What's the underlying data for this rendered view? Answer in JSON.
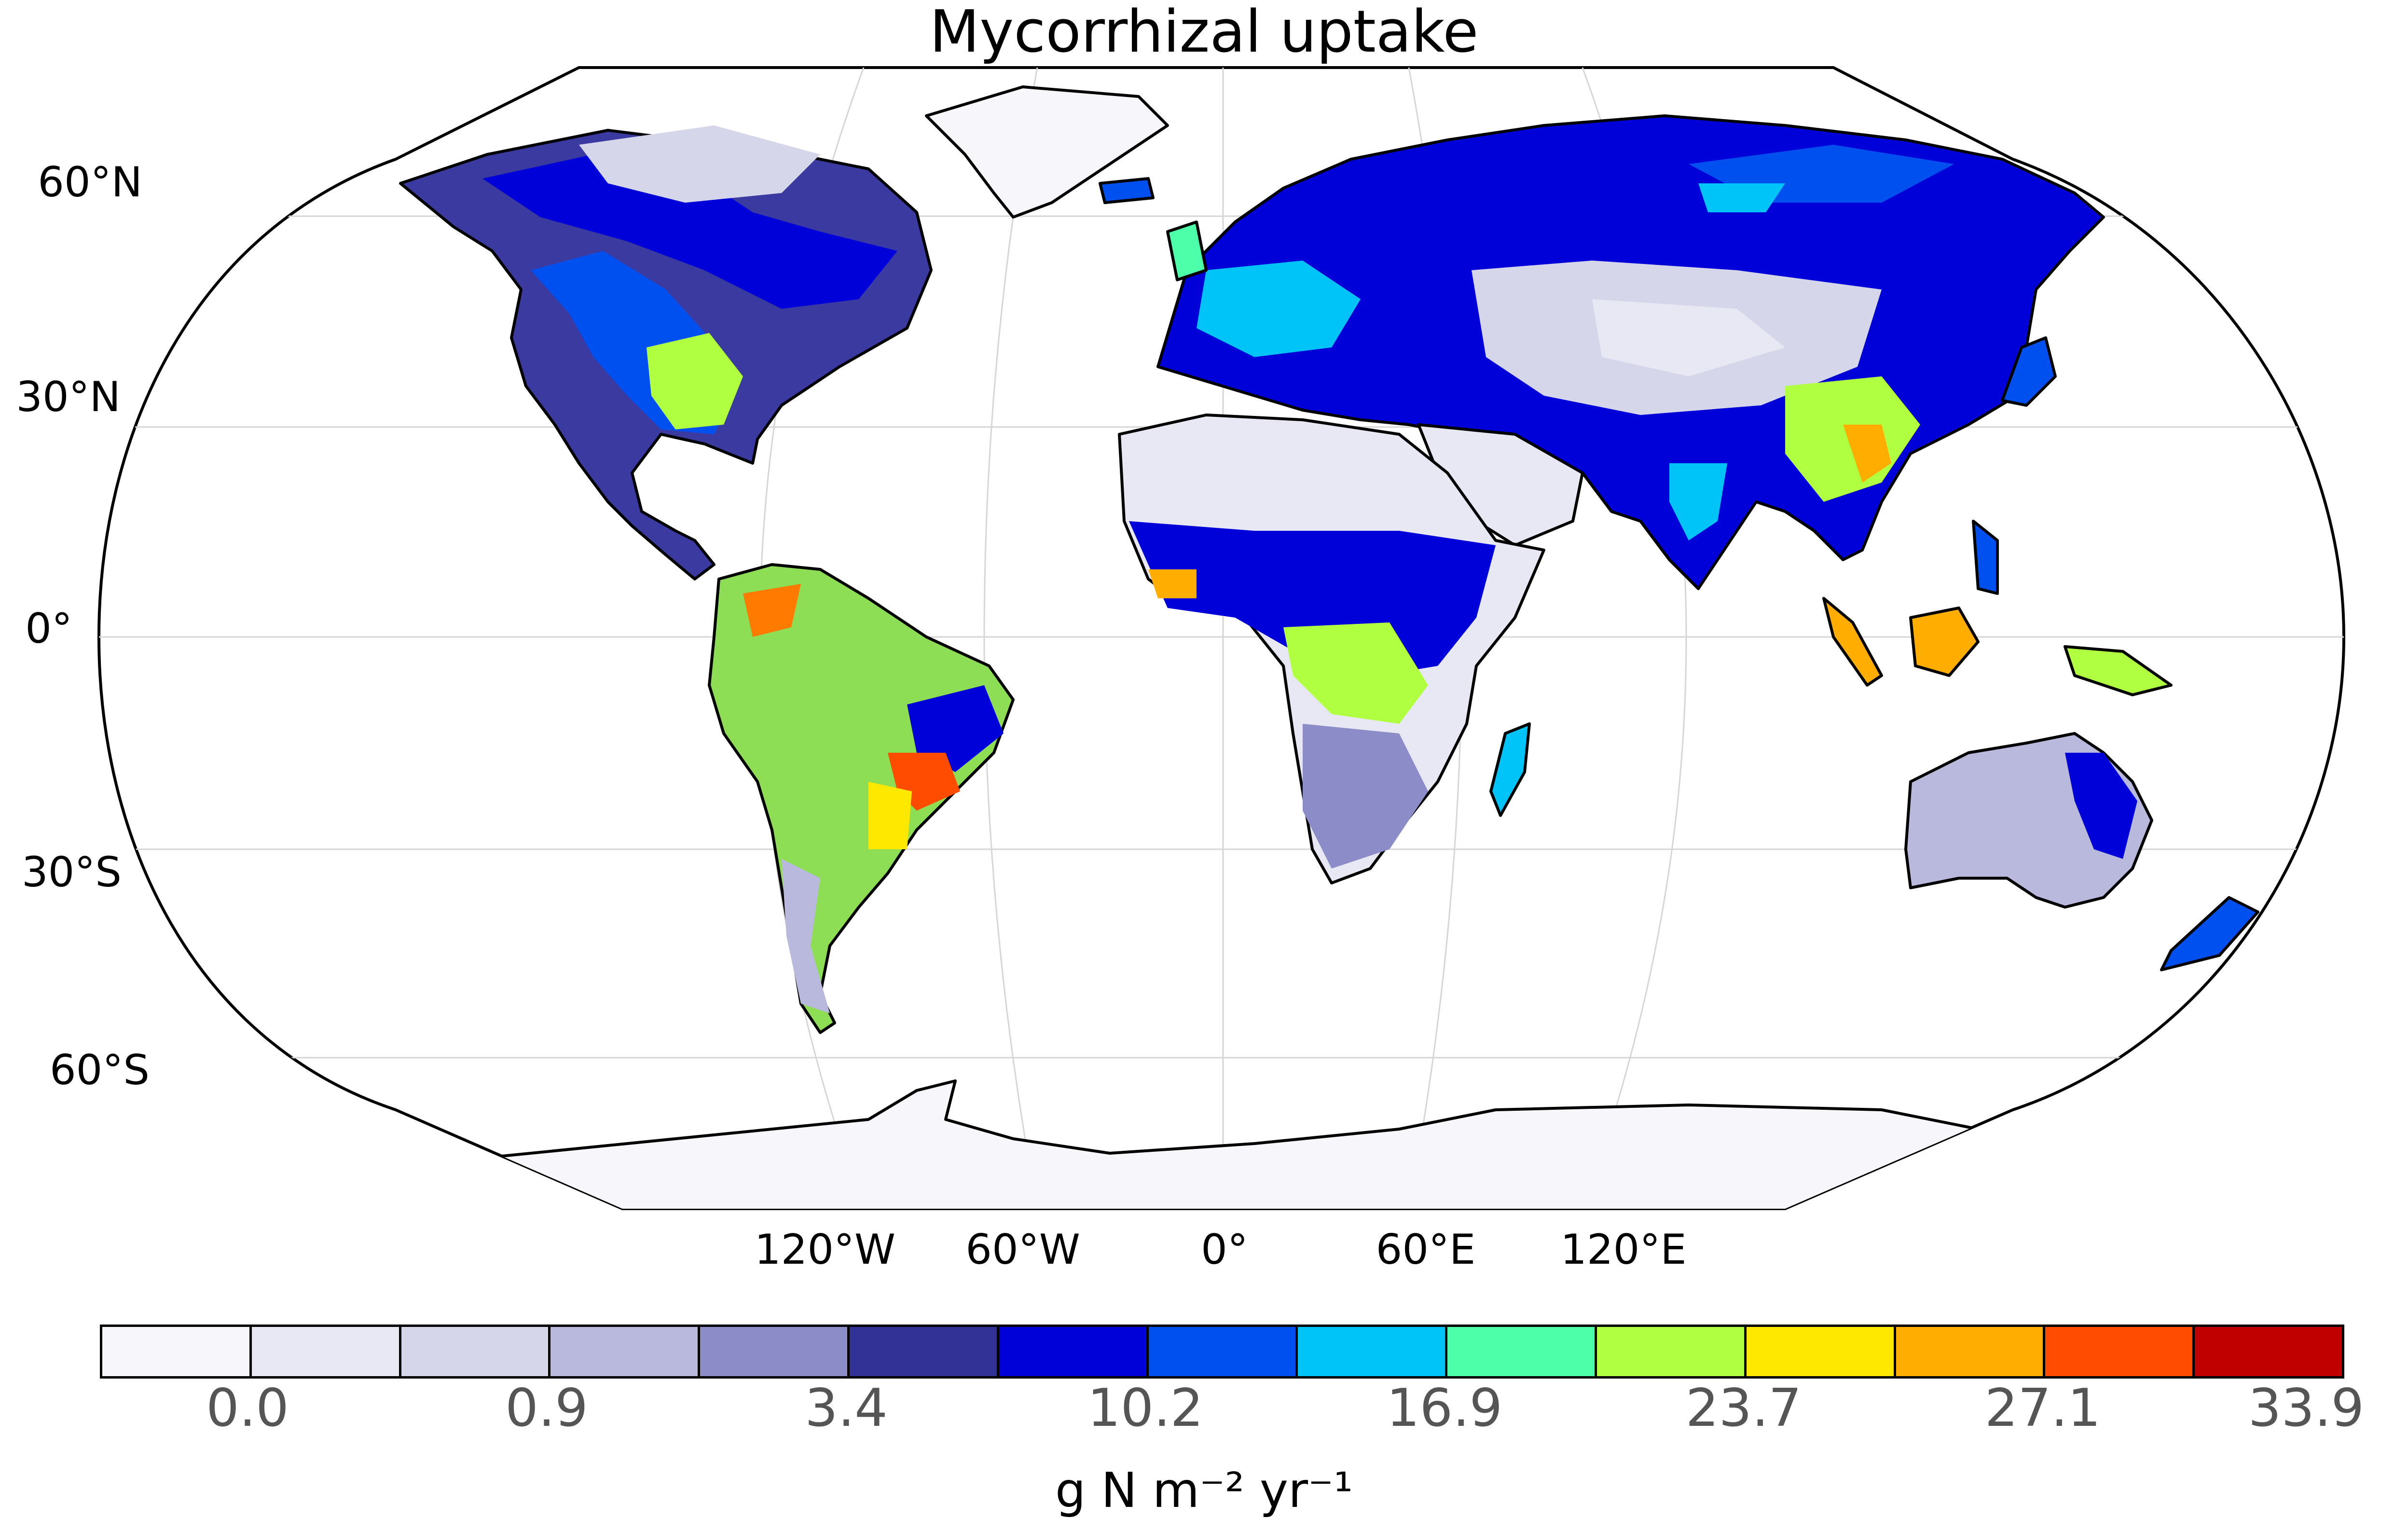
{
  "title": "Mycorrhizal uptake",
  "projection": "Robinson",
  "lat_labels": [
    "60°N",
    "30°N",
    "0°",
    "30°S",
    "60°S"
  ],
  "lon_labels": [
    "120°W",
    "60°W",
    "0°",
    "60°E",
    "120°E"
  ],
  "colorbar": {
    "colors": [
      "#f7f7fb",
      "#e8e8f4",
      "#d6d6ea",
      "#b8b9dc",
      "#8c8cc8",
      "#323296",
      "#0000d8",
      "#0050f0",
      "#00c4f8",
      "#4cffa8",
      "#b0ff40",
      "#ffe800",
      "#ffae00",
      "#ff4c00",
      "#c00000"
    ],
    "tick_labels": [
      "0.0",
      "0.9",
      "3.4",
      "10.2",
      "16.9",
      "23.7",
      "27.1",
      "33.9"
    ],
    "unit_label": "g N m⁻² yr⁻¹"
  },
  "colors": {
    "ocean": "#ffffff",
    "coastline": "#000000",
    "graticule": "#cccccc"
  }
}
